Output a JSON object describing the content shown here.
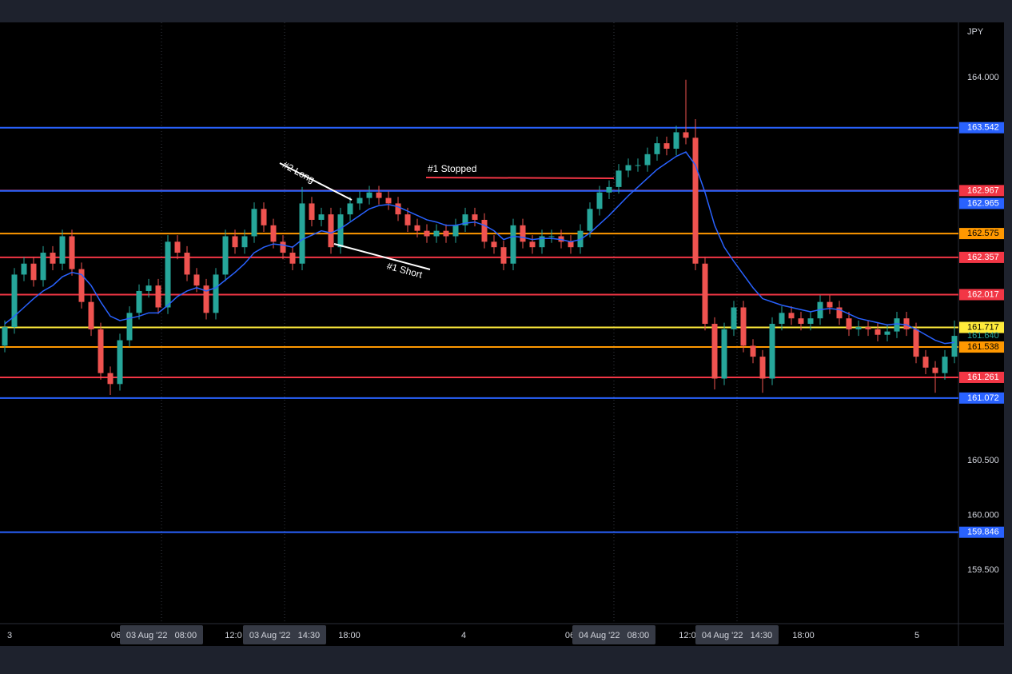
{
  "chart_data": {
    "type": "candlestick",
    "currency": "JPY",
    "up_color": "#26a69a",
    "down_color": "#ef5350",
    "ylim": [
      159.011,
      164.504
    ],
    "yticks": [
      {
        "value": 159.5,
        "label": "159.500"
      },
      {
        "value": 160,
        "label": "160.000"
      },
      {
        "value": 160.5,
        "label": "160.500"
      },
      {
        "value": 164,
        "label": "164.000"
      }
    ],
    "open": [
      161.55,
      161.72,
      162.2,
      162.3,
      162.15,
      162.4,
      162.3,
      162.55,
      162.25,
      161.95,
      161.7,
      161.3,
      161.2,
      161.6,
      161.85,
      162.05,
      162.1,
      161.9,
      162.5,
      162.4,
      162.2,
      162.1,
      161.85,
      162.2,
      162.55,
      162.45,
      162.55,
      162.8,
      162.65,
      162.5,
      162.4,
      162.3,
      162.85,
      162.7,
      162.75,
      162.45,
      162.75,
      162.85,
      162.9,
      162.95,
      162.9,
      162.85,
      162.75,
      162.65,
      162.6,
      162.55,
      162.6,
      162.55,
      162.65,
      162.75,
      162.7,
      162.5,
      162.45,
      162.3,
      162.65,
      162.5,
      162.45,
      162.55,
      162.55,
      162.5,
      162.45,
      162.6,
      162.8,
      162.95,
      163.0,
      163.15,
      163.2,
      163.2,
      163.3,
      163.4,
      163.35,
      163.5,
      163.45,
      162.3,
      161.75,
      161.25,
      161.7,
      161.9,
      161.55,
      161.45,
      161.25,
      161.75,
      161.85,
      161.8,
      161.75,
      161.8,
      161.95,
      161.9,
      161.8,
      161.7,
      161.72,
      161.7,
      161.65,
      161.68,
      161.8,
      161.7,
      161.45,
      161.35,
      161.3,
      161.45
    ],
    "high": [
      161.78,
      162.26,
      162.36,
      162.36,
      162.46,
      162.46,
      162.61,
      162.61,
      162.31,
      162.01,
      161.76,
      161.36,
      161.66,
      161.91,
      162.11,
      162.16,
      162.16,
      162.56,
      162.56,
      162.46,
      162.26,
      162.16,
      162.26,
      162.61,
      162.61,
      162.61,
      162.86,
      162.86,
      162.71,
      162.56,
      162.46,
      163.0,
      162.91,
      162.81,
      162.81,
      162.81,
      162.91,
      162.96,
      163.01,
      163.01,
      162.96,
      162.91,
      162.81,
      162.71,
      162.66,
      162.66,
      162.66,
      162.71,
      162.81,
      162.81,
      162.76,
      162.56,
      162.51,
      162.71,
      162.71,
      162.56,
      162.61,
      162.61,
      162.61,
      162.56,
      162.66,
      162.86,
      163.01,
      163.06,
      163.21,
      163.26,
      163.26,
      163.36,
      163.46,
      163.46,
      163.56,
      163.98,
      163.62,
      162.36,
      161.81,
      161.76,
      161.96,
      161.96,
      161.61,
      161.51,
      161.81,
      161.91,
      161.91,
      161.86,
      161.86,
      162.01,
      162.01,
      161.96,
      161.86,
      161.78,
      161.78,
      161.76,
      161.74,
      161.86,
      161.86,
      161.76,
      161.51,
      161.41,
      161.51,
      161.78
    ],
    "low": [
      161.49,
      161.66,
      162.14,
      162.09,
      162.09,
      162.24,
      162.24,
      162.19,
      161.89,
      161.64,
      161.24,
      161.1,
      161.14,
      161.54,
      161.79,
      161.99,
      161.84,
      161.84,
      162.34,
      162.14,
      162.04,
      161.79,
      161.79,
      162.14,
      162.39,
      162.39,
      162.49,
      162.59,
      162.44,
      162.34,
      162.24,
      162.24,
      162.64,
      162.64,
      162.39,
      162.39,
      162.69,
      162.79,
      162.84,
      162.84,
      162.79,
      162.69,
      162.59,
      162.54,
      162.49,
      162.49,
      162.49,
      162.49,
      162.59,
      162.64,
      162.44,
      162.39,
      162.24,
      162.24,
      162.44,
      162.39,
      162.39,
      162.49,
      162.44,
      162.39,
      162.39,
      162.54,
      162.74,
      162.89,
      162.94,
      163.09,
      163.14,
      163.14,
      163.24,
      163.29,
      163.29,
      163.39,
      162.24,
      161.69,
      161.15,
      161.19,
      161.64,
      161.49,
      161.39,
      161.12,
      161.19,
      161.69,
      161.74,
      161.69,
      161.69,
      161.74,
      161.84,
      161.74,
      161.64,
      161.64,
      161.64,
      161.59,
      161.59,
      161.62,
      161.64,
      161.39,
      161.29,
      161.12,
      161.24,
      161.39
    ],
    "close": [
      161.72,
      162.2,
      162.3,
      162.15,
      162.4,
      162.3,
      162.55,
      162.25,
      161.95,
      161.7,
      161.3,
      161.2,
      161.6,
      161.85,
      162.05,
      162.1,
      161.9,
      162.5,
      162.4,
      162.2,
      162.1,
      161.85,
      162.2,
      162.55,
      162.45,
      162.55,
      162.8,
      162.65,
      162.5,
      162.4,
      162.3,
      162.85,
      162.7,
      162.75,
      162.45,
      162.75,
      162.85,
      162.9,
      162.95,
      162.9,
      162.85,
      162.75,
      162.65,
      162.6,
      162.55,
      162.6,
      162.55,
      162.65,
      162.75,
      162.7,
      162.5,
      162.45,
      162.3,
      162.65,
      162.5,
      162.45,
      162.55,
      162.55,
      162.5,
      162.45,
      162.6,
      162.8,
      162.95,
      163.0,
      163.15,
      163.2,
      163.2,
      163.3,
      163.4,
      163.35,
      163.5,
      163.45,
      162.3,
      161.75,
      161.25,
      161.7,
      161.9,
      161.55,
      161.45,
      161.25,
      161.75,
      161.85,
      161.8,
      161.75,
      161.8,
      161.95,
      161.9,
      161.8,
      161.7,
      161.72,
      161.7,
      161.65,
      161.68,
      161.8,
      161.7,
      161.45,
      161.35,
      161.3,
      161.45,
      161.64
    ],
    "ema": {
      "color": "#2962ff",
      "values": [
        161.75,
        161.82,
        161.9,
        161.98,
        162.05,
        162.1,
        162.18,
        162.22,
        162.2,
        162.1,
        161.95,
        161.82,
        161.78,
        161.8,
        161.82,
        161.85,
        161.85,
        161.92,
        162.0,
        162.05,
        162.08,
        162.05,
        162.08,
        162.15,
        162.22,
        162.3,
        162.4,
        162.45,
        162.48,
        162.47,
        162.45,
        162.52,
        162.56,
        162.6,
        162.58,
        162.62,
        162.68,
        162.74,
        162.8,
        162.83,
        162.84,
        162.82,
        162.78,
        162.74,
        162.7,
        162.68,
        162.65,
        162.65,
        162.67,
        162.68,
        162.65,
        162.6,
        162.52,
        162.55,
        162.54,
        162.52,
        162.53,
        162.53,
        162.52,
        162.5,
        162.52,
        162.58,
        162.66,
        162.74,
        162.83,
        162.92,
        163.0,
        163.08,
        163.16,
        163.22,
        163.28,
        163.32,
        163.2,
        162.95,
        162.65,
        162.45,
        162.32,
        162.2,
        162.08,
        161.98,
        161.95,
        161.92,
        161.9,
        161.88,
        161.86,
        161.88,
        161.89,
        161.88,
        161.84,
        161.8,
        161.78,
        161.76,
        161.74,
        161.75,
        161.74,
        161.7,
        161.65,
        161.6,
        161.57,
        161.58
      ]
    },
    "levels": [
      {
        "value": 163.542,
        "label": "163.542",
        "color": "#2962ff"
      },
      {
        "value": 162.967,
        "label": "162.967",
        "color": "#f23645"
      },
      {
        "value": 162.965,
        "label": "162.965",
        "color": "#2962ff"
      },
      {
        "value": 162.575,
        "label": "162.575",
        "color": "#ff9800"
      },
      {
        "value": 162.357,
        "label": "162.357",
        "color": "#f23645"
      },
      {
        "value": 162.017,
        "label": "162.017",
        "color": "#f23645"
      },
      {
        "value": 161.717,
        "label": "161.717",
        "color": "#ffeb3b"
      },
      {
        "value": 161.538,
        "label": "161.538",
        "color": "#ff9800"
      },
      {
        "value": 161.261,
        "label": "161.261",
        "color": "#f23645"
      },
      {
        "value": 161.072,
        "label": "161.072",
        "color": "#2962ff"
      },
      {
        "value": 159.846,
        "label": "159.846",
        "color": "#2962ff"
      }
    ],
    "last_price": {
      "value": 161.64,
      "label": "161.640"
    },
    "annotations": [
      "#2 Long",
      "#1 Short",
      "#1 Stopped"
    ],
    "time_labels": [
      "3",
      "06",
      "03 Aug '22   08:00",
      "12:0",
      "03 Aug '22   14:30",
      "18:00",
      "4",
      "06",
      "04 Aug '22   08:00",
      "12:0",
      "04 Aug '22   14:30",
      "18:00",
      "5"
    ]
  }
}
